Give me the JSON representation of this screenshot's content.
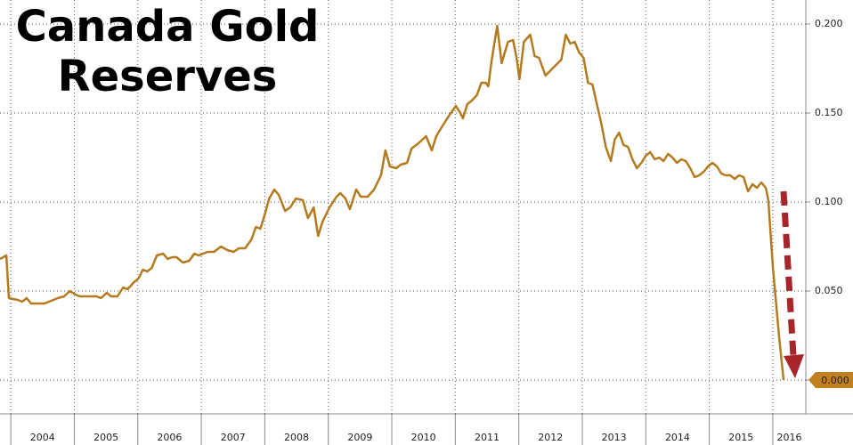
{
  "chart_data": {
    "type": "line",
    "title": "Canada Gold Reserves",
    "x": [
      2003.83,
      2003.93,
      2003.97,
      2004.11,
      2004.18,
      2004.25,
      2004.32,
      2004.39,
      2004.53,
      2004.6,
      2004.74,
      2004.84,
      2004.93,
      2005.02,
      2005.09,
      2005.23,
      2005.35,
      2005.42,
      2005.51,
      2005.58,
      2005.68,
      2005.77,
      2005.84,
      2005.94,
      2006.01,
      2006.08,
      2006.15,
      2006.22,
      2006.3,
      2006.4,
      2006.47,
      2006.54,
      2006.61,
      2006.71,
      2006.81,
      2006.89,
      2006.96,
      2007.03,
      2007.1,
      2007.2,
      2007.31,
      2007.41,
      2007.51,
      2007.59,
      2007.69,
      2007.79,
      2007.86,
      2007.93,
      2008.0,
      2008.07,
      2008.15,
      2008.22,
      2008.32,
      2008.4,
      2008.49,
      2008.6,
      2008.68,
      2008.77,
      2008.84,
      2008.91,
      2009.02,
      2009.13,
      2009.19,
      2009.27,
      2009.34,
      2009.44,
      2009.51,
      2009.62,
      2009.72,
      2009.83,
      2009.9,
      2009.97,
      2010.07,
      2010.14,
      2010.24,
      2010.31,
      2010.42,
      2010.54,
      2010.63,
      2010.7,
      2010.82,
      2010.91,
      2011.01,
      2011.08,
      2011.12,
      2011.19,
      2011.26,
      2011.34,
      2011.41,
      2011.48,
      2011.52,
      2011.57,
      2011.66,
      2011.73,
      2011.83,
      2011.91,
      2011.97,
      2012.01,
      2012.08,
      2012.18,
      2012.25,
      2012.32,
      2012.42,
      2012.53,
      2012.67,
      2012.74,
      2012.81,
      2012.88,
      2012.95,
      2013.02,
      2013.09,
      2013.16,
      2013.23,
      2013.3,
      2013.37,
      2013.45,
      2013.51,
      2013.58,
      2013.65,
      2013.72,
      2013.79,
      2013.86,
      2013.93,
      2014.0,
      2014.07,
      2014.14,
      2014.21,
      2014.28,
      2014.35,
      2014.42,
      2014.49,
      2014.56,
      2014.63,
      2014.7,
      2014.77,
      2014.84,
      2014.91,
      2014.98,
      2015.05,
      2015.12,
      2015.19,
      2015.26,
      2015.33,
      2015.4,
      2015.47,
      2015.54,
      2015.61,
      2015.68,
      2015.75,
      2015.82,
      2015.89,
      2015.93,
      2016.0,
      2016.1,
      2016.17
    ],
    "series": [
      {
        "name": "Canada Gold Reserves",
        "color": "#b47a1e",
        "values": [
          0.068,
          0.07,
          0.046,
          0.045,
          0.044,
          0.046,
          0.043,
          0.043,
          0.043,
          0.044,
          0.046,
          0.047,
          0.05,
          0.048,
          0.047,
          0.047,
          0.047,
          0.046,
          0.049,
          0.047,
          0.047,
          0.052,
          0.051,
          0.055,
          0.057,
          0.062,
          0.061,
          0.063,
          0.07,
          0.071,
          0.068,
          0.069,
          0.069,
          0.066,
          0.067,
          0.071,
          0.07,
          0.071,
          0.072,
          0.072,
          0.075,
          0.073,
          0.072,
          0.074,
          0.074,
          0.079,
          0.086,
          0.085,
          0.093,
          0.102,
          0.107,
          0.104,
          0.095,
          0.097,
          0.102,
          0.101,
          0.091,
          0.097,
          0.081,
          0.089,
          0.097,
          0.103,
          0.105,
          0.102,
          0.096,
          0.107,
          0.103,
          0.103,
          0.107,
          0.115,
          0.129,
          0.12,
          0.119,
          0.121,
          0.122,
          0.13,
          0.133,
          0.137,
          0.129,
          0.137,
          0.144,
          0.149,
          0.154,
          0.15,
          0.147,
          0.155,
          0.157,
          0.16,
          0.167,
          0.167,
          0.165,
          0.179,
          0.199,
          0.178,
          0.19,
          0.191,
          0.18,
          0.169,
          0.19,
          0.194,
          0.182,
          0.181,
          0.171,
          0.175,
          0.18,
          0.194,
          0.189,
          0.19,
          0.184,
          0.181,
          0.167,
          0.166,
          0.155,
          0.144,
          0.131,
          0.123,
          0.135,
          0.139,
          0.132,
          0.131,
          0.124,
          0.119,
          0.122,
          0.126,
          0.128,
          0.124,
          0.125,
          0.123,
          0.127,
          0.125,
          0.122,
          0.124,
          0.123,
          0.119,
          0.114,
          0.115,
          0.117,
          0.12,
          0.122,
          0.12,
          0.116,
          0.115,
          0.115,
          0.113,
          0.115,
          0.114,
          0.106,
          0.11,
          0.108,
          0.111,
          0.108,
          0.101,
          0.064,
          0.024,
          0
        ],
        "value_labels": [
          null,
          null,
          null,
          null,
          null,
          null,
          null,
          null,
          null,
          null,
          null,
          null,
          null,
          null,
          null,
          null,
          null,
          null,
          null,
          null,
          null,
          null,
          null,
          null,
          null,
          null,
          null,
          null,
          null,
          null,
          null,
          null,
          null,
          null,
          null,
          null,
          null,
          null,
          null,
          null,
          null,
          null,
          null,
          null,
          null,
          null,
          null,
          null,
          null,
          null,
          null,
          null,
          null,
          null,
          null,
          null,
          null,
          null,
          null,
          null,
          null,
          null,
          null,
          null,
          null,
          null,
          null,
          null,
          null,
          null,
          null,
          null,
          null,
          null,
          null,
          null,
          null,
          null,
          null,
          null,
          null,
          null,
          null,
          null,
          null,
          null,
          null,
          null,
          null,
          null,
          null,
          null,
          null,
          null,
          null,
          null,
          null,
          null,
          null,
          null,
          null,
          null,
          null,
          null,
          null,
          null,
          null,
          null,
          null,
          null,
          null,
          null,
          null,
          null,
          null,
          null,
          null,
          null,
          null,
          null,
          null,
          null,
          null,
          null,
          null,
          null,
          null,
          null,
          null,
          null,
          null,
          null,
          null,
          null,
          null,
          null,
          null,
          null,
          null,
          null,
          null,
          null,
          null,
          null,
          null,
          null,
          null,
          null,
          null,
          null,
          null,
          null,
          null,
          null,
          "0.000"
        ]
      }
    ],
    "xlim": [
      2003.83,
      2016.52
    ],
    "xticks": [
      2004,
      2005,
      2006,
      2007,
      2008,
      2009,
      2010,
      2011,
      2012,
      2013,
      2014,
      2015,
      2016
    ],
    "ylim": [
      -0.019,
      0.2135
    ],
    "yticks": [
      {
        "value": 0,
        "label": "0.000"
      },
      {
        "value": 0.05,
        "label": "0.050"
      },
      {
        "value": 0.1,
        "label": "0.100"
      },
      {
        "value": 0.15,
        "label": "0.150"
      },
      {
        "value": 0.2,
        "label": "0.200"
      }
    ],
    "grid": true
  }
}
